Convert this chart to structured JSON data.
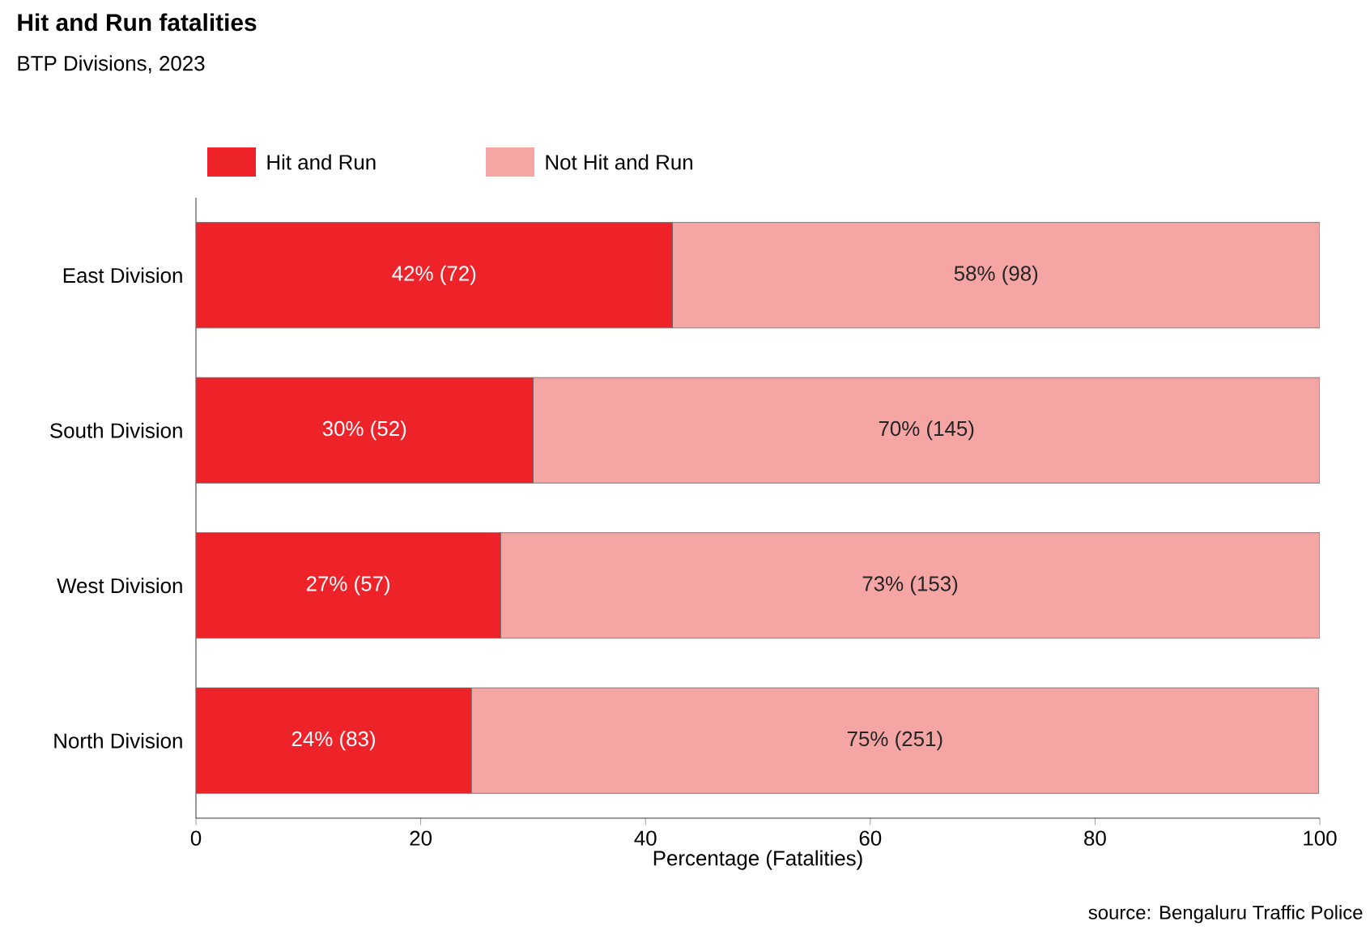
{
  "chart_data": {
    "type": "bar",
    "orientation": "horizontal",
    "stacked": true,
    "title": "Hit and Run fatalities",
    "subtitle": "BTP Divisions, 2023",
    "xlabel": "Percentage (Fatalities)",
    "categories": [
      "East Division",
      "South Division",
      "West Division",
      "North Division"
    ],
    "series": [
      {
        "name": "Hit and Run",
        "color": "#ee2229",
        "values": [
          42.4,
          30,
          27.1,
          24.5
        ],
        "value_labels": [
          "42% (72)",
          "30% (52)",
          "27% (57)",
          "24% (83)"
        ]
      },
      {
        "name": "Not Hit and Run",
        "color": "#f6a5a5",
        "values": [
          57.6,
          70,
          72.9,
          75.4
        ],
        "value_labels": [
          "58% (98)",
          "70% (145)",
          "73% (153)",
          "75% (251)"
        ]
      }
    ],
    "xlim": [
      0,
      100
    ],
    "xticks": [
      0,
      20,
      40,
      60,
      80,
      100
    ],
    "grid": false,
    "legend": "top left",
    "annotations": [
      "source: Bengaluru Traffic Police"
    ]
  }
}
